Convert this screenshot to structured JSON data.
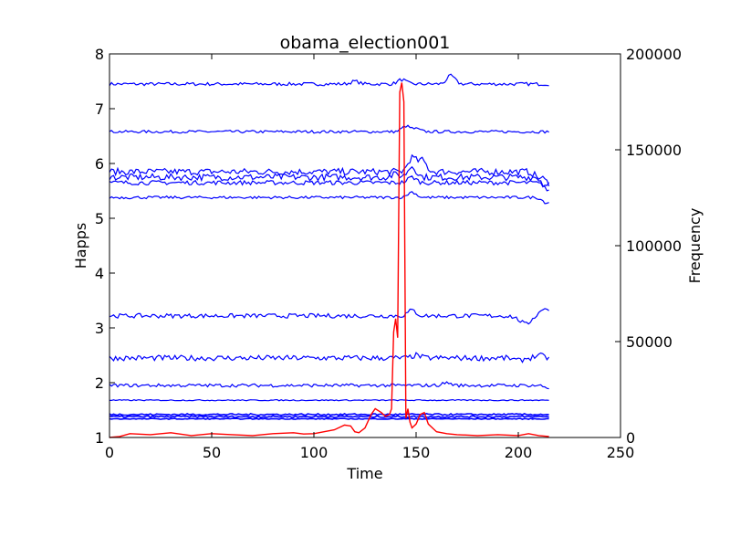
{
  "chart_data": {
    "type": "line",
    "title": "obama_election001",
    "xlabel": "Time",
    "ylabel": "Happs",
    "y2label": "Frequency",
    "xlim": [
      0,
      250
    ],
    "ylim": [
      1,
      8
    ],
    "y2lim": [
      0,
      200000
    ],
    "xticks": [
      "0",
      "50",
      "100",
      "150",
      "200",
      "250"
    ],
    "yticks": [
      "1",
      "2",
      "3",
      "4",
      "5",
      "6",
      "7",
      "8"
    ],
    "y2ticks": [
      "0",
      "50000",
      "100000",
      "150000",
      "200000"
    ],
    "grid": false,
    "colors": {
      "happs": "#0000ff",
      "frequency": "#ff0000"
    },
    "happs_series": [
      {
        "base": 7.45,
        "noise": 0.03,
        "bumps": [
          [
            120,
            0.05
          ],
          [
            143,
            0.08
          ],
          [
            167,
            0.15
          ]
        ]
      },
      {
        "base": 6.58,
        "noise": 0.025,
        "bumps": [
          [
            145,
            0.1
          ],
          [
            150,
            0.05
          ]
        ]
      },
      {
        "base": 5.85,
        "noise": 0.06,
        "bumps": [
          [
            148,
            0.25
          ],
          [
            153,
            0.2
          ],
          [
            210,
            -0.1
          ],
          [
            215,
            -0.2
          ]
        ]
      },
      {
        "base": 5.75,
        "noise": 0.06,
        "bumps": [
          [
            140,
            0.05
          ],
          [
            148,
            0.2
          ],
          [
            214,
            -0.2
          ]
        ]
      },
      {
        "base": 5.65,
        "noise": 0.04,
        "bumps": [
          [
            148,
            0.1
          ],
          [
            213,
            -0.05
          ]
        ]
      },
      {
        "base": 5.38,
        "noise": 0.025,
        "bumps": [
          [
            148,
            0.1
          ],
          [
            214,
            -0.1
          ]
        ]
      },
      {
        "base": 3.22,
        "noise": 0.04,
        "bumps": [
          [
            148,
            0.1
          ],
          [
            200,
            -0.05
          ],
          [
            204,
            -0.15
          ],
          [
            213,
            0.15
          ]
        ]
      },
      {
        "base": 2.45,
        "noise": 0.05,
        "bumps": [
          [
            150,
            0.05
          ],
          [
            200,
            -0.05
          ],
          [
            210,
            0.05
          ]
        ]
      },
      {
        "base": 1.95,
        "noise": 0.03,
        "bumps": [
          [
            165,
            0.05
          ],
          [
            215,
            -0.05
          ]
        ]
      },
      {
        "base": 1.68,
        "noise": 0.01,
        "bumps": []
      },
      {
        "base": 1.42,
        "noise": 0.015,
        "bumps": []
      },
      {
        "base": 1.38,
        "noise": 0.015,
        "bumps": []
      },
      {
        "base": 1.34,
        "noise": 0.008,
        "bumps": []
      }
    ],
    "frequency_points": [
      [
        0,
        0
      ],
      [
        5,
        500
      ],
      [
        10,
        2000
      ],
      [
        20,
        1500
      ],
      [
        30,
        2500
      ],
      [
        40,
        1000
      ],
      [
        50,
        2000
      ],
      [
        60,
        1500
      ],
      [
        70,
        1000
      ],
      [
        80,
        2000
      ],
      [
        90,
        2500
      ],
      [
        95,
        1800
      ],
      [
        100,
        2000
      ],
      [
        105,
        3000
      ],
      [
        110,
        4000
      ],
      [
        115,
        6500
      ],
      [
        118,
        6000
      ],
      [
        120,
        3000
      ],
      [
        122,
        2500
      ],
      [
        125,
        5000
      ],
      [
        128,
        12000
      ],
      [
        130,
        15000
      ],
      [
        133,
        13000
      ],
      [
        135,
        11000
      ],
      [
        137,
        12000
      ],
      [
        138,
        15000
      ],
      [
        139,
        55000
      ],
      [
        140,
        62000
      ],
      [
        141,
        52000
      ],
      [
        142,
        180000
      ],
      [
        143,
        185000
      ],
      [
        144,
        175000
      ],
      [
        145,
        10000
      ],
      [
        146,
        15000
      ],
      [
        147,
        8000
      ],
      [
        148,
        5000
      ],
      [
        150,
        7000
      ],
      [
        152,
        12000
      ],
      [
        154,
        13000
      ],
      [
        156,
        7000
      ],
      [
        158,
        5000
      ],
      [
        160,
        3000
      ],
      [
        165,
        2000
      ],
      [
        170,
        1500
      ],
      [
        180,
        1000
      ],
      [
        190,
        1500
      ],
      [
        200,
        1000
      ],
      [
        205,
        2000
      ],
      [
        210,
        1000
      ],
      [
        215,
        500
      ]
    ]
  }
}
